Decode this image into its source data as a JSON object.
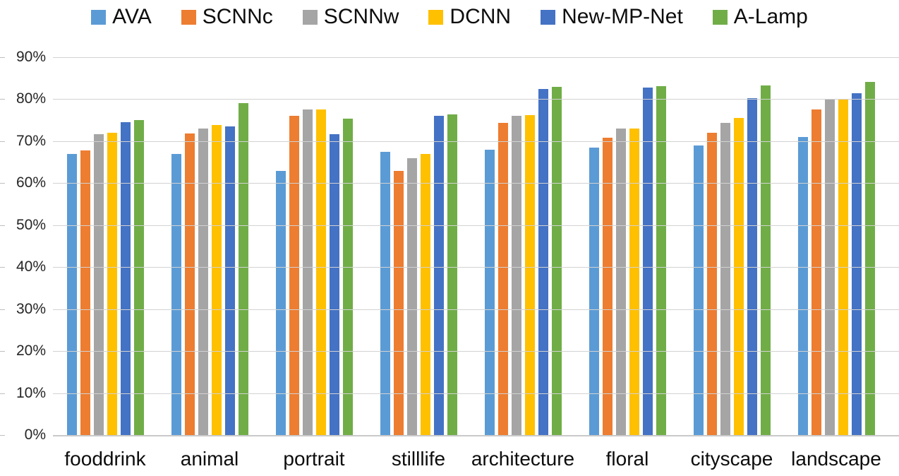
{
  "chart_data": {
    "type": "bar",
    "title": "",
    "xlabel": "",
    "ylabel": "",
    "categories": [
      "fooddrink",
      "animal",
      "portrait",
      "stilllife",
      "architecture",
      "floral",
      "cityscape",
      "landscape"
    ],
    "series": [
      {
        "name": "AVA",
        "color": "#5B9BD5",
        "values": [
          67.0,
          67.0,
          63.0,
          67.5,
          68.0,
          68.5,
          69.0,
          71.0
        ]
      },
      {
        "name": "SCNNc",
        "color": "#ED7D31",
        "values": [
          67.8,
          71.8,
          76.0,
          63.0,
          74.4,
          70.8,
          72.0,
          77.6
        ]
      },
      {
        "name": "SCNNw",
        "color": "#A5A5A5",
        "values": [
          71.7,
          73.0,
          77.6,
          66.0,
          76.0,
          73.0,
          74.3,
          80.0
        ]
      },
      {
        "name": "DCNN",
        "color": "#FFC000",
        "values": [
          72.0,
          73.8,
          77.6,
          67.0,
          76.2,
          73.0,
          75.5,
          80.0
        ]
      },
      {
        "name": "New-MP-Net",
        "color": "#4472C4",
        "values": [
          74.6,
          73.5,
          71.7,
          76.0,
          82.5,
          82.8,
          80.3,
          81.4
        ]
      },
      {
        "name": "A-Lamp",
        "color": "#70AD47",
        "values": [
          75.0,
          79.0,
          75.4,
          76.4,
          83.0,
          83.1,
          83.2,
          84.1
        ]
      }
    ],
    "ylim": [
      0,
      90
    ],
    "ytick_step": 10,
    "ytick_labels": [
      "0%",
      "10%",
      "20%",
      "30%",
      "40%",
      "50%",
      "60%",
      "70%",
      "80%",
      "90%"
    ],
    "grid": true,
    "legend_position": "top"
  },
  "colors": {
    "background": "#FFFFFF",
    "gridline": "#D2D2D2",
    "axis_line": "#C9C9C9",
    "axis_text": "#262626",
    "label_text": "#0D0D0D"
  }
}
